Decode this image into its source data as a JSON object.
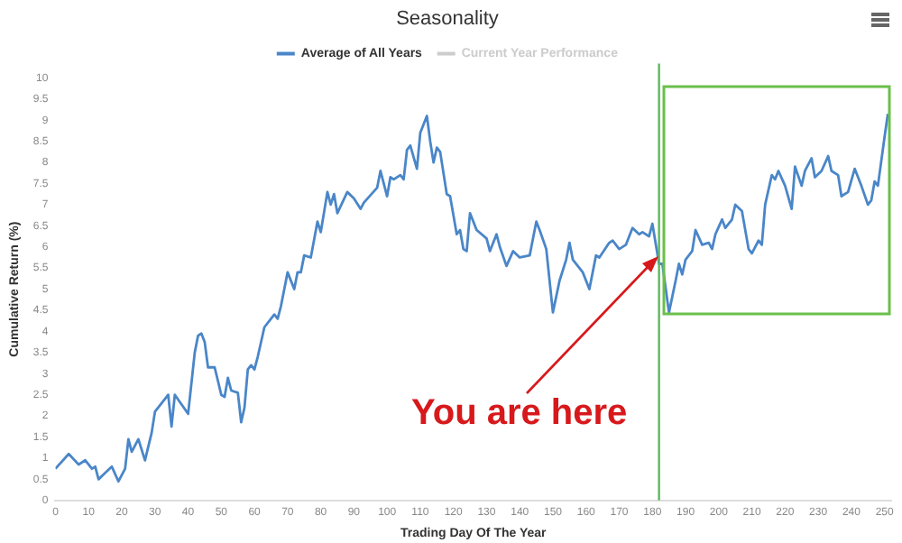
{
  "chart_data": {
    "type": "line",
    "title": "Seasonality",
    "xlabel": "Trading Day Of The Year",
    "ylabel": "Cumulative Return (%)",
    "xlim": [
      0,
      252
    ],
    "xticks": [
      0,
      10,
      20,
      30,
      40,
      50,
      60,
      70,
      80,
      90,
      100,
      110,
      120,
      130,
      140,
      150,
      160,
      170,
      180,
      190,
      200,
      210,
      220,
      230,
      240,
      250
    ],
    "ylim": [
      0,
      10
    ],
    "yticks": [
      0,
      0.5,
      1,
      1.5,
      2,
      2.5,
      3,
      3.5,
      4,
      4.5,
      5,
      5.5,
      6,
      6.5,
      7,
      7.5,
      8,
      8.5,
      9,
      9.5,
      10
    ],
    "grid": false,
    "legend": "top",
    "marker": "none",
    "line_style": "solid",
    "series": [
      {
        "name": "Average of All Years",
        "color": "#4a86c8",
        "x": [
          0,
          4,
          7,
          9,
          11,
          12,
          13,
          15,
          17,
          19,
          21,
          22,
          23,
          25,
          27,
          29,
          30,
          33,
          34,
          35,
          36,
          40,
          42,
          43,
          44,
          45,
          46,
          48,
          50,
          51,
          52,
          53,
          55,
          56,
          57,
          58,
          59,
          60,
          61,
          63,
          65,
          66,
          67,
          68,
          70,
          72,
          73,
          74,
          75,
          77,
          79,
          80,
          82,
          83,
          84,
          85,
          88,
          90,
          92,
          93,
          97,
          98,
          100,
          101,
          102,
          104,
          105,
          106,
          107,
          109,
          110,
          112,
          113,
          114,
          115,
          116,
          118,
          119,
          121,
          122,
          123,
          124,
          125,
          127,
          130,
          131,
          133,
          134,
          136,
          138,
          140,
          143,
          145,
          146,
          148,
          150,
          152,
          154,
          155,
          156,
          159,
          161,
          163,
          164,
          167,
          168,
          170,
          172,
          174,
          176,
          177,
          179,
          180,
          182,
          183,
          185,
          187,
          188,
          189,
          190,
          192,
          193,
          195,
          197,
          198,
          199,
          201,
          202,
          204,
          205,
          207,
          209,
          210,
          212,
          213,
          214,
          216,
          217,
          218,
          220,
          222,
          223,
          225,
          226,
          228,
          229,
          231,
          233,
          234,
          236,
          237,
          239,
          241,
          243,
          245,
          246,
          247,
          248,
          250,
          251
        ],
        "values": [
          0.75,
          1.1,
          0.85,
          0.95,
          0.75,
          0.8,
          0.5,
          0.65,
          0.8,
          0.45,
          0.75,
          1.45,
          1.15,
          1.45,
          0.95,
          1.6,
          2.1,
          2.4,
          2.5,
          1.75,
          2.5,
          2.05,
          3.5,
          3.9,
          3.95,
          3.75,
          3.15,
          3.15,
          2.5,
          2.45,
          2.9,
          2.6,
          2.55,
          1.85,
          2.2,
          3.1,
          3.2,
          3.1,
          3.4,
          4.1,
          4.3,
          4.4,
          4.3,
          4.6,
          5.4,
          5.0,
          5.4,
          5.4,
          5.8,
          5.75,
          6.6,
          6.35,
          7.3,
          7.0,
          7.25,
          6.8,
          7.3,
          7.15,
          6.9,
          7.05,
          7.4,
          7.8,
          7.2,
          7.65,
          7.6,
          7.7,
          7.6,
          8.3,
          8.4,
          7.85,
          8.7,
          9.1,
          8.5,
          8.0,
          8.35,
          8.25,
          7.25,
          7.2,
          6.3,
          6.4,
          5.95,
          5.9,
          6.8,
          6.4,
          6.2,
          5.9,
          6.3,
          6.0,
          5.55,
          5.9,
          5.75,
          5.8,
          6.6,
          6.4,
          5.95,
          4.45,
          5.2,
          5.7,
          6.1,
          5.7,
          5.4,
          5.0,
          5.8,
          5.75,
          6.1,
          6.15,
          5.95,
          6.05,
          6.45,
          6.3,
          6.35,
          6.25,
          6.55,
          5.6,
          5.6,
          4.45,
          5.2,
          5.6,
          5.35,
          5.7,
          5.9,
          6.4,
          6.05,
          6.1,
          5.95,
          6.3,
          6.65,
          6.45,
          6.65,
          7.0,
          6.85,
          5.95,
          5.85,
          6.15,
          6.05,
          7.0,
          7.7,
          7.6,
          7.8,
          7.45,
          6.9,
          7.9,
          7.45,
          7.8,
          8.1,
          7.65,
          7.8,
          8.15,
          7.8,
          7.7,
          7.2,
          7.3,
          7.85,
          7.45,
          7.0,
          7.1,
          7.55,
          7.45,
          8.6,
          9.15
        ]
      },
      {
        "name": "Current Year Performance",
        "color": "#cccccc"
      }
    ],
    "ref_lines": [
      {
        "axis": "x",
        "value": 182,
        "color": "#5cb85c"
      }
    ],
    "annotations": [
      "You are here"
    ]
  }
}
